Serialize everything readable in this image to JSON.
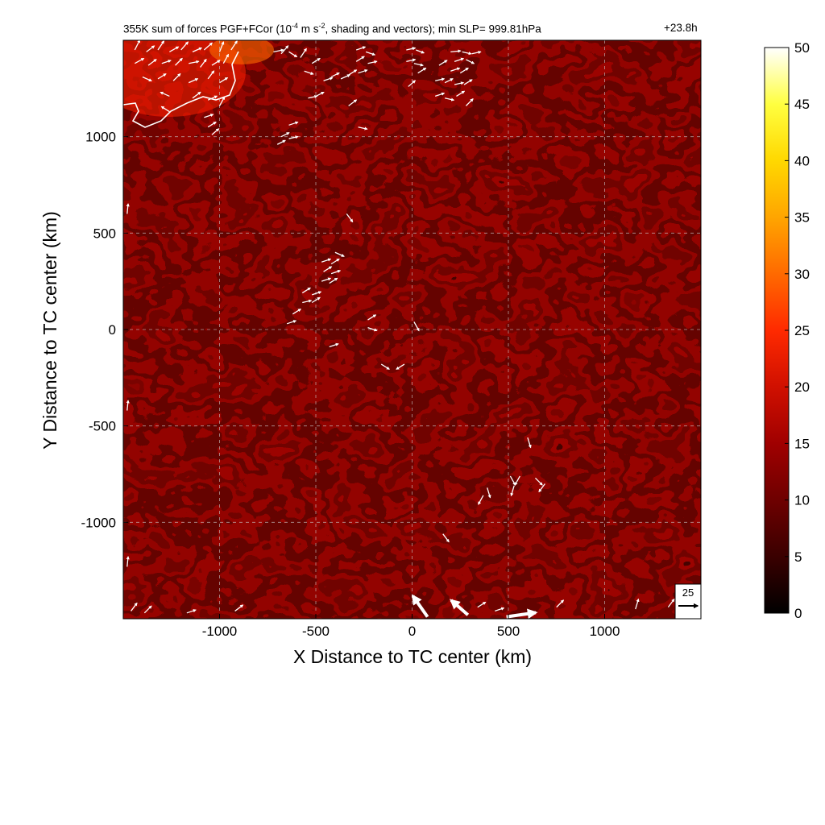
{
  "chart_data": {
    "type": "heatmap",
    "title_prefix": "355K sum of forces PGF+FCor (10",
    "title_exp1": "-4",
    "title_mid": " m s",
    "title_exp2": "-2",
    "title_suffix": ", shading and vectors); min SLP= 999.81hPa",
    "time_label": "+23.8h",
    "xlabel": "X Distance to TC center (km)",
    "ylabel": "Y Distance to TC center (km)",
    "xlim": [
      -1500,
      1500
    ],
    "ylim": [
      -1500,
      1500
    ],
    "x_ticks": [
      -1000,
      -500,
      0,
      500,
      1000
    ],
    "y_ticks": [
      1000,
      500,
      0,
      -500,
      -1000
    ],
    "grid": true,
    "colorbar": {
      "min": 0,
      "max": 50,
      "ticks": [
        50,
        45,
        40,
        35,
        30,
        25,
        20,
        15,
        10,
        5,
        0
      ],
      "colors": [
        "#000000",
        "#3a0000",
        "#6e0000",
        "#a00000",
        "#d01000",
        "#ff2a00",
        "#ff6a00",
        "#ffa500",
        "#ffd800",
        "#ffff40",
        "#ffffff"
      ]
    },
    "reference_vector": {
      "label": "25",
      "magnitude": 25
    },
    "vectors": [
      {
        "x": -1440,
        "y": 1450,
        "u": 5,
        "v": 10
      },
      {
        "x": -1380,
        "y": 1440,
        "u": 8,
        "v": 6
      },
      {
        "x": -1320,
        "y": 1450,
        "u": 6,
        "v": 9
      },
      {
        "x": -1260,
        "y": 1440,
        "u": 9,
        "v": 5
      },
      {
        "x": -1200,
        "y": 1450,
        "u": 7,
        "v": 8
      },
      {
        "x": -1140,
        "y": 1440,
        "u": 9,
        "v": 4
      },
      {
        "x": -1080,
        "y": 1450,
        "u": 8,
        "v": 7
      },
      {
        "x": -1000,
        "y": 1440,
        "u": 4,
        "v": 10
      },
      {
        "x": -940,
        "y": 1450,
        "u": 6,
        "v": 9
      },
      {
        "x": -1440,
        "y": 1380,
        "u": 9,
        "v": 5
      },
      {
        "x": -1370,
        "y": 1370,
        "u": 8,
        "v": 6
      },
      {
        "x": -1300,
        "y": 1380,
        "u": 9,
        "v": 3
      },
      {
        "x": -1230,
        "y": 1370,
        "u": 7,
        "v": 7
      },
      {
        "x": -1160,
        "y": 1380,
        "u": 10,
        "v": 2
      },
      {
        "x": -1100,
        "y": 1360,
        "u": 6,
        "v": 8
      },
      {
        "x": -1040,
        "y": 1370,
        "u": 8,
        "v": 5
      },
      {
        "x": -980,
        "y": 1380,
        "u": 5,
        "v": 9
      },
      {
        "x": -1400,
        "y": 1310,
        "u": 9,
        "v": -4
      },
      {
        "x": -1320,
        "y": 1300,
        "u": 8,
        "v": 5
      },
      {
        "x": -1240,
        "y": 1290,
        "u": 7,
        "v": 7
      },
      {
        "x": -1160,
        "y": 1280,
        "u": 9,
        "v": 4
      },
      {
        "x": -1060,
        "y": 1300,
        "u": 6,
        "v": 8
      },
      {
        "x": -1000,
        "y": 1280,
        "u": 8,
        "v": 5
      },
      {
        "x": -1260,
        "y": 1210,
        "u": -9,
        "v": 4
      },
      {
        "x": -1140,
        "y": 1200,
        "u": 8,
        "v": 6
      },
      {
        "x": -1060,
        "y": 1190,
        "u": 9,
        "v": 4
      },
      {
        "x": -1000,
        "y": 1160,
        "u": 5,
        "v": 9
      },
      {
        "x": -1260,
        "y": 1130,
        "u": -8,
        "v": 5
      },
      {
        "x": -1080,
        "y": 1100,
        "u": 9,
        "v": 3
      },
      {
        "x": -1060,
        "y": 1050,
        "u": 8,
        "v": 5
      },
      {
        "x": -1040,
        "y": 1010,
        "u": 7,
        "v": 6
      },
      {
        "x": -720,
        "y": 1440,
        "u": 10,
        "v": 2
      },
      {
        "x": -680,
        "y": 1430,
        "u": 7,
        "v": 8
      },
      {
        "x": -640,
        "y": 1440,
        "u": 8,
        "v": -5
      },
      {
        "x": -580,
        "y": 1410,
        "u": 6,
        "v": 9
      },
      {
        "x": -560,
        "y": 1340,
        "u": 9,
        "v": -3
      },
      {
        "x": -520,
        "y": 1380,
        "u": 8,
        "v": 5
      },
      {
        "x": -640,
        "y": 1060,
        "u": 9,
        "v": 3
      },
      {
        "x": -680,
        "y": 1000,
        "u": 8,
        "v": 4
      },
      {
        "x": -640,
        "y": 990,
        "u": 9,
        "v": 2
      },
      {
        "x": -700,
        "y": 960,
        "u": 8,
        "v": 4
      },
      {
        "x": -290,
        "y": 1450,
        "u": 9,
        "v": 3
      },
      {
        "x": -240,
        "y": 1440,
        "u": 9,
        "v": -3
      },
      {
        "x": -290,
        "y": 1390,
        "u": 8,
        "v": 5
      },
      {
        "x": -230,
        "y": 1380,
        "u": 9,
        "v": 2
      },
      {
        "x": -280,
        "y": 1330,
        "u": 9,
        "v": 3
      },
      {
        "x": -330,
        "y": 1320,
        "u": 8,
        "v": 5
      },
      {
        "x": -370,
        "y": 1300,
        "u": 9,
        "v": 4
      },
      {
        "x": -420,
        "y": 1310,
        "u": 8,
        "v": 4
      },
      {
        "x": -460,
        "y": 1290,
        "u": 9,
        "v": 3
      },
      {
        "x": -540,
        "y": 1200,
        "u": 9,
        "v": 2
      },
      {
        "x": -500,
        "y": 1210,
        "u": 8,
        "v": 4
      },
      {
        "x": -330,
        "y": 1160,
        "u": 8,
        "v": 6
      },
      {
        "x": -280,
        "y": 1050,
        "u": 9,
        "v": -2
      },
      {
        "x": -30,
        "y": 1450,
        "u": 9,
        "v": 2
      },
      {
        "x": 20,
        "y": 1450,
        "u": 8,
        "v": -3
      },
      {
        "x": -30,
        "y": 1390,
        "u": 9,
        "v": 2
      },
      {
        "x": 10,
        "y": 1380,
        "u": 9,
        "v": -2
      },
      {
        "x": 30,
        "y": 1330,
        "u": 8,
        "v": 5
      },
      {
        "x": -20,
        "y": 1260,
        "u": 7,
        "v": 6
      },
      {
        "x": 200,
        "y": 1440,
        "u": 10,
        "v": 1
      },
      {
        "x": 260,
        "y": 1440,
        "u": 9,
        "v": -2
      },
      {
        "x": 310,
        "y": 1430,
        "u": 9,
        "v": 2
      },
      {
        "x": 220,
        "y": 1390,
        "u": 9,
        "v": 3
      },
      {
        "x": 280,
        "y": 1400,
        "u": 8,
        "v": -4
      },
      {
        "x": 140,
        "y": 1370,
        "u": 8,
        "v": 5
      },
      {
        "x": 200,
        "y": 1340,
        "u": 9,
        "v": 3
      },
      {
        "x": 250,
        "y": 1330,
        "u": 8,
        "v": 5
      },
      {
        "x": 120,
        "y": 1290,
        "u": 9,
        "v": 2
      },
      {
        "x": 170,
        "y": 1280,
        "u": 8,
        "v": 4
      },
      {
        "x": 220,
        "y": 1270,
        "u": 9,
        "v": 2
      },
      {
        "x": 270,
        "y": 1270,
        "u": 8,
        "v": 5
      },
      {
        "x": 120,
        "y": 1210,
        "u": 9,
        "v": 3
      },
      {
        "x": 170,
        "y": 1200,
        "u": 9,
        "v": -2
      },
      {
        "x": 230,
        "y": 1210,
        "u": 8,
        "v": 5
      },
      {
        "x": 280,
        "y": 1160,
        "u": 7,
        "v": 7
      },
      {
        "x": -340,
        "y": 600,
        "u": 6,
        "v": -8
      },
      {
        "x": -400,
        "y": 400,
        "u": 9,
        "v": -4
      },
      {
        "x": -470,
        "y": 350,
        "u": 9,
        "v": 3
      },
      {
        "x": -420,
        "y": 340,
        "u": 8,
        "v": 5
      },
      {
        "x": -460,
        "y": 300,
        "u": 8,
        "v": 5
      },
      {
        "x": -420,
        "y": 290,
        "u": 9,
        "v": 3
      },
      {
        "x": -470,
        "y": 250,
        "u": 9,
        "v": 3
      },
      {
        "x": -430,
        "y": 240,
        "u": 8,
        "v": 5
      },
      {
        "x": -570,
        "y": 190,
        "u": 8,
        "v": 5
      },
      {
        "x": -520,
        "y": 180,
        "u": 9,
        "v": 3
      },
      {
        "x": -570,
        "y": 140,
        "u": 9,
        "v": 2
      },
      {
        "x": -520,
        "y": 140,
        "u": 8,
        "v": 5
      },
      {
        "x": -620,
        "y": 80,
        "u": 8,
        "v": 5
      },
      {
        "x": -650,
        "y": 30,
        "u": 9,
        "v": 3
      },
      {
        "x": -230,
        "y": 50,
        "u": 8,
        "v": 5
      },
      {
        "x": -230,
        "y": 10,
        "u": 9,
        "v": -3
      },
      {
        "x": 10,
        "y": 40,
        "u": 5,
        "v": -9
      },
      {
        "x": -430,
        "y": -90,
        "u": 9,
        "v": 3
      },
      {
        "x": -160,
        "y": -180,
        "u": 8,
        "v": -5
      },
      {
        "x": -40,
        "y": -180,
        "u": -8,
        "v": -5
      },
      {
        "x": 600,
        "y": -560,
        "u": 3,
        "v": -10
      },
      {
        "x": 510,
        "y": -760,
        "u": 5,
        "v": -9
      },
      {
        "x": 560,
        "y": -760,
        "u": -5,
        "v": -9
      },
      {
        "x": 640,
        "y": -770,
        "u": 7,
        "v": -7
      },
      {
        "x": 530,
        "y": -810,
        "u": -3,
        "v": -10
      },
      {
        "x": 690,
        "y": -800,
        "u": -6,
        "v": -8
      },
      {
        "x": 390,
        "y": -820,
        "u": 3,
        "v": -10
      },
      {
        "x": 370,
        "y": -860,
        "u": -5,
        "v": -9
      },
      {
        "x": 160,
        "y": -1060,
        "u": 6,
        "v": -8
      },
      {
        "x": -1480,
        "y": 600,
        "u": 1,
        "v": 10
      },
      {
        "x": -1480,
        "y": -420,
        "u": 1,
        "v": 10
      },
      {
        "x": -1480,
        "y": -1230,
        "u": 1,
        "v": 10
      },
      {
        "x": -1460,
        "y": -1460,
        "u": 6,
        "v": 8
      },
      {
        "x": -1390,
        "y": -1470,
        "u": 7,
        "v": 7
      },
      {
        "x": -1170,
        "y": -1470,
        "u": 9,
        "v": 3
      },
      {
        "x": -920,
        "y": -1460,
        "u": 8,
        "v": 6
      },
      {
        "x": 1160,
        "y": -1450,
        "u": 3,
        "v": 10
      },
      {
        "x": 1330,
        "y": -1440,
        "u": 6,
        "v": 8
      },
      {
        "x": 1390,
        "y": -1440,
        "u": 5,
        "v": 9
      },
      {
        "x": 750,
        "y": -1440,
        "u": 7,
        "v": 7
      },
      {
        "x": 340,
        "y": -1440,
        "u": 8,
        "v": 5
      },
      {
        "x": 430,
        "y": -1460,
        "u": 9,
        "v": 3
      }
    ],
    "large_vectors": [
      {
        "x": 80,
        "y": -1490,
        "u": -7,
        "v": 10
      },
      {
        "x": 290,
        "y": -1480,
        "u": -8,
        "v": 7
      },
      {
        "x": 490,
        "y": -1490,
        "u": 14,
        "v": 2
      }
    ]
  }
}
